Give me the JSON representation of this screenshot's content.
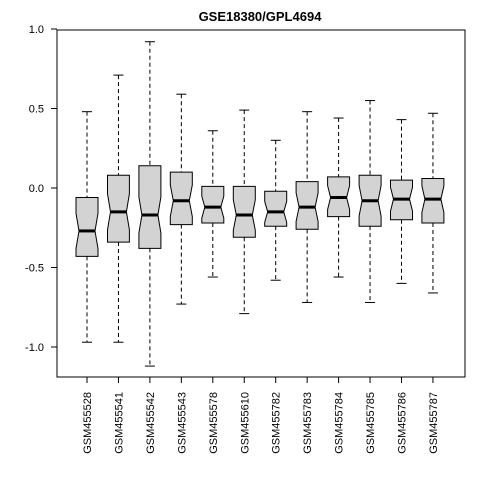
{
  "chart_data": {
    "type": "boxplot",
    "title": "GSE18380/GPL4694",
    "xlabel": "",
    "ylabel": "",
    "ylim": [
      -1.2,
      1.0
    ],
    "yticks": [
      {
        "value": 1.0,
        "label": "1.0"
      },
      {
        "value": 0.5,
        "label": "0.5"
      },
      {
        "value": 0.0,
        "label": "0.0"
      },
      {
        "value": -0.5,
        "label": "-0.5"
      },
      {
        "value": -1.0,
        "label": "-1.0"
      }
    ],
    "notched": true,
    "box_color": "#d3d3d3",
    "categories": [
      "GSM455528",
      "GSM455541",
      "GSM455542",
      "GSM455543",
      "GSM455578",
      "GSM455610",
      "GSM455782",
      "GSM455783",
      "GSM455784",
      "GSM455785",
      "GSM455786",
      "GSM455787"
    ],
    "boxes": [
      {
        "min": -0.97,
        "q1": -0.43,
        "median": -0.27,
        "q3": -0.06,
        "max": 0.48
      },
      {
        "min": -0.97,
        "q1": -0.34,
        "median": -0.15,
        "q3": 0.08,
        "max": 0.71
      },
      {
        "min": -1.12,
        "q1": -0.38,
        "median": -0.17,
        "q3": 0.14,
        "max": 0.92
      },
      {
        "min": -0.73,
        "q1": -0.23,
        "median": -0.08,
        "q3": 0.1,
        "max": 0.59
      },
      {
        "min": -0.56,
        "q1": -0.22,
        "median": -0.12,
        "q3": 0.01,
        "max": 0.36
      },
      {
        "min": -0.79,
        "q1": -0.31,
        "median": -0.17,
        "q3": 0.01,
        "max": 0.49
      },
      {
        "min": -0.58,
        "q1": -0.24,
        "median": -0.15,
        "q3": -0.02,
        "max": 0.3
      },
      {
        "min": -0.72,
        "q1": -0.26,
        "median": -0.12,
        "q3": 0.04,
        "max": 0.48
      },
      {
        "min": -0.56,
        "q1": -0.18,
        "median": -0.06,
        "q3": 0.07,
        "max": 0.44
      },
      {
        "min": -0.72,
        "q1": -0.24,
        "median": -0.08,
        "q3": 0.08,
        "max": 0.55
      },
      {
        "min": -0.6,
        "q1": -0.2,
        "median": -0.07,
        "q3": 0.05,
        "max": 0.43
      },
      {
        "min": -0.66,
        "q1": -0.22,
        "median": -0.07,
        "q3": 0.06,
        "max": 0.47
      }
    ]
  }
}
